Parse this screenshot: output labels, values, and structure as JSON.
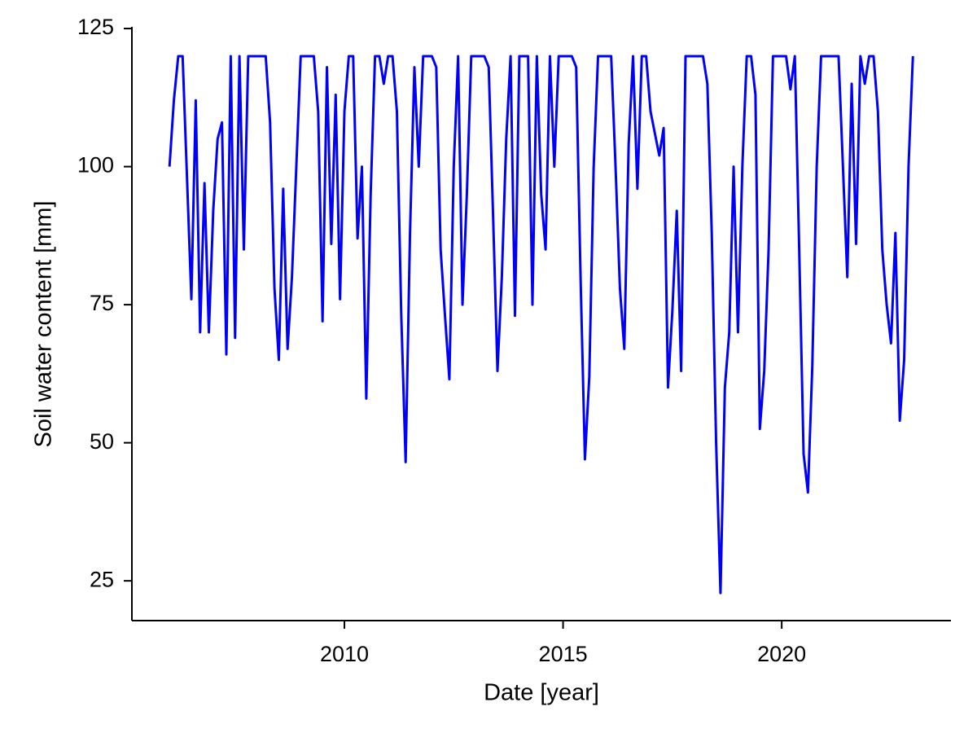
{
  "chart_data": {
    "type": "line",
    "xlabel": "Date [year]",
    "ylabel": "Soil water content [mm]",
    "xlim": [
      2005.14,
      2023.87
    ],
    "ylim": [
      17.8,
      125.3
    ],
    "xticks": [
      2010,
      2015,
      2020
    ],
    "yticks": [
      25,
      50,
      75,
      100,
      125
    ],
    "grid": false,
    "x": [
      2006,
      2006.1,
      2006.2,
      2006.3,
      2006.4,
      2006.5,
      2006.6,
      2006.7,
      2006.8,
      2006.9,
      2007,
      2007.1,
      2007.2,
      2007.3,
      2007.4,
      2007.5,
      2007.6,
      2007.7,
      2007.8,
      2007.9,
      2008,
      2008.1,
      2008.2,
      2008.3,
      2008.4,
      2008.5,
      2008.6,
      2008.7,
      2008.8,
      2008.9,
      2009,
      2009.1,
      2009.2,
      2009.3,
      2009.4,
      2009.5,
      2009.6,
      2009.7,
      2009.8,
      2009.9,
      2010,
      2010.1,
      2010.2,
      2010.3,
      2010.4,
      2010.5,
      2010.6,
      2010.7,
      2010.8,
      2010.9,
      2011,
      2011.1,
      2011.2,
      2011.3,
      2011.4,
      2011.5,
      2011.6,
      2011.7,
      2011.8,
      2011.9,
      2012,
      2012.1,
      2012.2,
      2012.3,
      2012.4,
      2012.5,
      2012.6,
      2012.7,
      2012.8,
      2012.9,
      2013,
      2013.1,
      2013.2,
      2013.3,
      2013.4,
      2013.5,
      2013.6,
      2013.7,
      2013.8,
      2013.9,
      2014,
      2014.1,
      2014.2,
      2014.3,
      2014.4,
      2014.5,
      2014.6,
      2014.7,
      2014.8,
      2014.9,
      2015,
      2015.1,
      2015.2,
      2015.3,
      2015.4,
      2015.5,
      2015.6,
      2015.7,
      2015.8,
      2015.9,
      2016,
      2016.1,
      2016.2,
      2016.3,
      2016.4,
      2016.5,
      2016.6,
      2016.7,
      2016.8,
      2016.9,
      2017,
      2017.1,
      2017.2,
      2017.3,
      2017.4,
      2017.5,
      2017.6,
      2017.7,
      2017.8,
      2017.9,
      2018,
      2018.1,
      2018.2,
      2018.3,
      2018.4,
      2018.5,
      2018.6,
      2018.7,
      2018.8,
      2018.9,
      2019,
      2019.1,
      2019.2,
      2019.3,
      2019.4,
      2019.5,
      2019.6,
      2019.7,
      2019.8,
      2019.9,
      2020,
      2020.1,
      2020.2,
      2020.3,
      2020.4,
      2020.5,
      2020.6,
      2020.7,
      2020.8,
      2020.9,
      2021,
      2021.1,
      2021.2,
      2021.3,
      2021.4,
      2021.5,
      2021.6,
      2021.7,
      2021.8,
      2021.9,
      2022,
      2022.1,
      2022.2,
      2022.3,
      2022.4,
      2022.5,
      2022.6,
      2022.7,
      2022.8,
      2022.9,
      2023
    ],
    "series": [
      {
        "color": "#0000ff",
        "values": [
          100,
          112,
          120,
          120,
          98,
          76,
          112,
          70,
          97,
          70,
          92,
          105,
          108,
          66,
          120,
          69,
          120,
          85,
          120,
          120,
          120,
          120,
          120,
          108,
          78,
          65,
          96,
          67,
          80,
          100,
          120,
          120,
          120,
          120,
          110,
          72,
          118,
          86,
          113,
          76,
          110,
          120,
          120,
          87,
          100,
          58,
          95,
          120,
          120,
          115,
          120,
          120,
          110,
          73,
          46.5,
          88,
          118,
          100,
          120,
          120,
          120,
          118,
          85,
          73,
          61.5,
          100,
          120,
          75,
          95,
          120,
          120,
          120,
          120,
          118,
          91,
          63,
          80,
          105,
          120,
          73,
          120,
          120,
          120,
          75,
          120,
          95,
          85,
          120,
          100,
          120,
          120,
          120,
          120,
          118,
          80,
          47,
          62,
          100,
          120,
          120,
          120,
          120,
          100,
          78,
          67,
          104,
          120,
          96,
          120,
          120,
          110,
          106,
          102,
          107,
          60,
          74,
          92,
          63,
          120,
          120,
          120,
          120,
          120,
          115,
          88,
          50,
          22.8,
          60,
          70,
          100,
          70,
          100,
          120,
          120,
          113,
          52.5,
          63,
          85,
          120,
          120,
          120,
          120,
          114,
          120,
          85,
          48,
          41,
          64,
          100,
          120,
          120,
          120,
          120,
          120,
          100,
          80,
          115,
          86,
          120,
          115,
          120,
          120,
          110,
          85,
          75,
          68,
          88,
          54,
          65,
          100,
          120
        ]
      }
    ]
  }
}
